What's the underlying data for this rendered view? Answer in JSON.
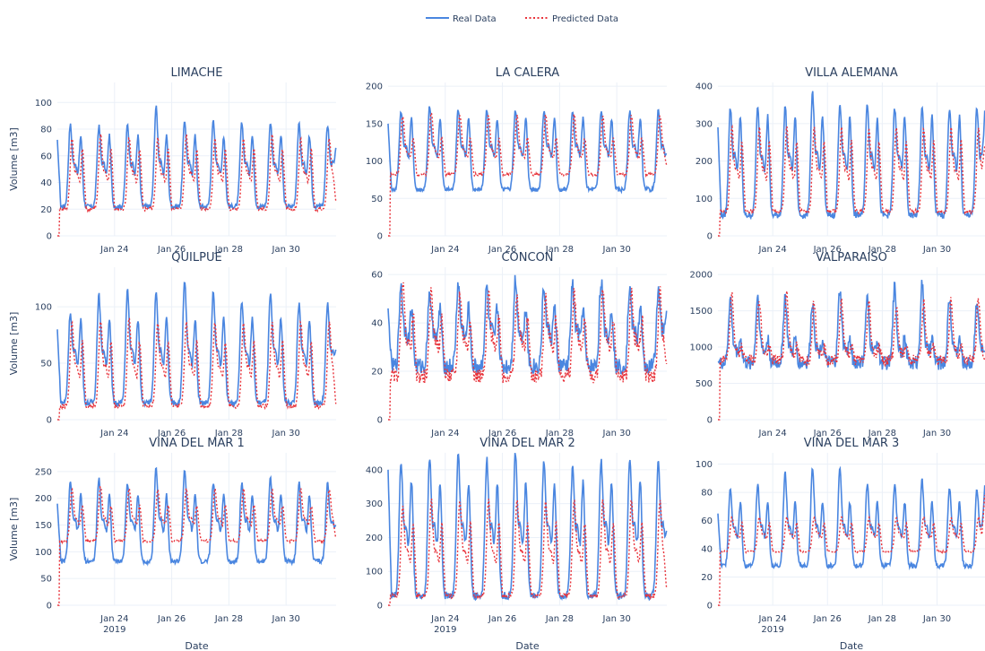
{
  "legend": {
    "placement": "top-center",
    "entries": [
      {
        "name": "Real Data",
        "color": "#4a86e0",
        "dash": "solid"
      },
      {
        "name": "Predicted Data",
        "color": "#e8333b",
        "dash": "dot"
      }
    ]
  },
  "chart_data": [
    {
      "type": "line",
      "title": "LIMACHE",
      "ylabel": "Volume [m3]",
      "xlabel": "",
      "ylim": [
        0,
        115
      ],
      "yticks": [
        0,
        20,
        40,
        60,
        80,
        100
      ],
      "xticks": [
        "Jan 24",
        "Jan 26",
        "Jan 28",
        "Jan 30"
      ],
      "xticks_year": "",
      "real": {
        "base": 22,
        "peak1": 82,
        "peak2": 74,
        "amps": [
          1.0,
          0.98,
          1.0,
          1.22,
          1.05,
          1.04,
          1.02,
          1.03,
          1.0
        ],
        "start": 72,
        "end": 66
      },
      "pred": {
        "base": 20,
        "peak1": 72,
        "peak2": 64,
        "amps": [
          1.0,
          1.05,
          1.0,
          1.0,
          1.05,
          1.0,
          1.0,
          1.05,
          1.0
        ],
        "start": 0,
        "end": 26
      }
    },
    {
      "type": "line",
      "title": "LA CALERA",
      "ylabel": "",
      "xlabel": "",
      "ylim": [
        0,
        205
      ],
      "yticks": [
        0,
        50,
        100,
        150,
        200
      ],
      "xticks": [
        "Jan 24",
        "Jan 26",
        "Jan 28",
        "Jan 30"
      ],
      "xticks_year": "",
      "real": {
        "base": 62,
        "peak1": 165,
        "peak2": 155,
        "amps": [
          1.0,
          1.05,
          1.02,
          1.0,
          1.0,
          1.0,
          1.0,
          1.0,
          1.0
        ],
        "start": 150,
        "end": 110
      },
      "pred": {
        "base": 82,
        "peak1": 160,
        "peak2": 130,
        "amps": [
          1.0,
          1.05,
          1.0,
          1.0,
          1.0,
          1.0,
          1.0,
          1.0,
          1.0
        ],
        "start": 0,
        "end": 95
      }
    },
    {
      "type": "line",
      "title": "VILLA ALEMANA",
      "ylabel": "",
      "xlabel": "",
      "ylim": [
        0,
        410
      ],
      "yticks": [
        0,
        100,
        200,
        300,
        400
      ],
      "xticks": [
        "Jan 24",
        "Jan 26",
        "Jan 28",
        "Jan 30"
      ],
      "xticks_year": "",
      "real": {
        "base": 55,
        "peak1": 335,
        "peak2": 315,
        "amps": [
          1.0,
          1.0,
          1.02,
          1.15,
          1.05,
          1.05,
          1.0,
          1.0,
          1.0
        ],
        "start": 290,
        "end": 335
      },
      "pred": {
        "base": 65,
        "peak1": 285,
        "peak2": 250,
        "amps": [
          1.0,
          1.0,
          1.0,
          1.0,
          1.0,
          1.0,
          1.0,
          1.0,
          1.0
        ],
        "start": 0,
        "end": 240
      }
    },
    {
      "type": "line",
      "title": "QUILPUE",
      "ylabel": "Volume [m3]",
      "xlabel": "",
      "ylim": [
        0,
        135
      ],
      "yticks": [
        0,
        50,
        100
      ],
      "xticks": [
        "Jan 24",
        "Jan 26",
        "Jan 28",
        "Jan 30"
      ],
      "xticks_year": "",
      "real": {
        "base": 15,
        "peak1": 100,
        "peak2": 88,
        "amps": [
          0.92,
          1.1,
          1.15,
          1.15,
          1.25,
          1.12,
          1.05,
          1.1,
          1.0
        ],
        "start": 80,
        "end": 62
      },
      "pred": {
        "base": 12,
        "peak1": 85,
        "peak2": 68,
        "amps": [
          1.0,
          1.02,
          1.05,
          1.0,
          1.0,
          1.0,
          1.0,
          1.0,
          1.0
        ],
        "start": 0,
        "end": 14
      }
    },
    {
      "type": "line",
      "title": "CONCON",
      "ylabel": "",
      "xlabel": "",
      "ylim": [
        0,
        63
      ],
      "yticks": [
        0,
        20,
        40,
        60
      ],
      "xticks": [
        "Jan 24",
        "Jan 26",
        "Jan 28",
        "Jan 30"
      ],
      "xticks_year": "",
      "real": {
        "base": 22,
        "peak1": 54,
        "peak2": 46,
        "amps": [
          1.05,
          0.95,
          1.05,
          1.0,
          1.1,
          1.0,
          1.02,
          1.1,
          1.0
        ],
        "start": 46,
        "end": 45
      },
      "pred": {
        "base": 18,
        "peak1": 52,
        "peak2": 42,
        "amps": [
          1.15,
          1.0,
          1.0,
          1.0,
          0.95,
          1.0,
          1.0,
          1.05,
          1.0
        ],
        "start": 0,
        "end": 23
      }
    },
    {
      "type": "line",
      "title": "VALPARAISO",
      "ylabel": "",
      "xlabel": "",
      "ylim": [
        0,
        2100
      ],
      "yticks": [
        0,
        500,
        1000,
        1500,
        2000
      ],
      "xticks": [
        "Jan 24",
        "Jan 26",
        "Jan 28",
        "Jan 30"
      ],
      "xticks_year": "",
      "real": {
        "base": 780,
        "peak1": 1650,
        "peak2": 1100,
        "amps": [
          1.0,
          1.05,
          1.05,
          0.95,
          1.15,
          1.0,
          1.2,
          1.25,
          1.0
        ],
        "start": 800,
        "end": 930
      },
      "pred": {
        "base": 820,
        "peak1": 1650,
        "peak2": 1000,
        "amps": [
          1.05,
          1.0,
          1.1,
          1.0,
          1.0,
          0.95,
          0.9,
          0.95,
          1.0
        ],
        "start": 0,
        "end": 820
      }
    },
    {
      "type": "line",
      "title": "VIÑA DEL MAR 1",
      "ylabel": "Volume [m3]",
      "xlabel": "Date",
      "ylim": [
        0,
        285
      ],
      "yticks": [
        0,
        50,
        100,
        150,
        200,
        250
      ],
      "xticks": [
        "Jan 24",
        "Jan 26",
        "Jan 28",
        "Jan 30"
      ],
      "xticks_year": "2019",
      "real": {
        "base": 82,
        "peak1": 225,
        "peak2": 205,
        "amps": [
          1.0,
          1.05,
          1.0,
          1.2,
          1.18,
          1.0,
          1.0,
          1.08,
          1.0
        ],
        "start": 190,
        "end": 150
      },
      "pred": {
        "base": 120,
        "peak1": 215,
        "peak2": 185,
        "amps": [
          1.0,
          1.05,
          1.02,
          1.0,
          1.02,
          1.0,
          1.0,
          1.0,
          1.0
        ],
        "start": 0,
        "end": 125
      }
    },
    {
      "type": "line",
      "title": "VIÑA DEL MAR 2",
      "ylabel": "",
      "xlabel": "Date",
      "ylim": [
        0,
        450
      ],
      "yticks": [
        0,
        100,
        200,
        300,
        400
      ],
      "xticks": [
        "Jan 24",
        "Jan 26",
        "Jan 28",
        "Jan 30"
      ],
      "xticks_year": "2019",
      "real": {
        "base": 28,
        "peak1": 420,
        "peak2": 360,
        "amps": [
          1.0,
          1.02,
          1.05,
          1.0,
          1.05,
          1.0,
          0.95,
          1.0,
          1.0
        ],
        "start": 400,
        "end": 220
      },
      "pred": {
        "base": 28,
        "peak1": 305,
        "peak2": 240,
        "amps": [
          0.95,
          1.0,
          1.0,
          1.0,
          1.0,
          1.0,
          1.0,
          1.0,
          1.0
        ],
        "start": 0,
        "end": 50
      }
    },
    {
      "type": "line",
      "title": "VIÑA DEL MAR 3",
      "ylabel": "",
      "xlabel": "Date",
      "ylim": [
        0,
        108
      ],
      "yticks": [
        0,
        20,
        40,
        60,
        80,
        100
      ],
      "xticks": [
        "Jan 24",
        "Jan 26",
        "Jan 28",
        "Jan 30"
      ],
      "xticks_year": "2019",
      "real": {
        "base": 28,
        "peak1": 82,
        "peak2": 72,
        "amps": [
          1.0,
          1.05,
          1.2,
          1.25,
          1.28,
          1.05,
          1.05,
          1.1,
          1.0
        ],
        "start": 65,
        "end": 85
      },
      "pred": {
        "base": 38,
        "peak1": 62,
        "peak2": 58,
        "amps": [
          1.0,
          1.0,
          1.0,
          1.0,
          1.0,
          1.0,
          1.0,
          1.0,
          1.0
        ],
        "start": 0,
        "end": 78
      }
    }
  ]
}
